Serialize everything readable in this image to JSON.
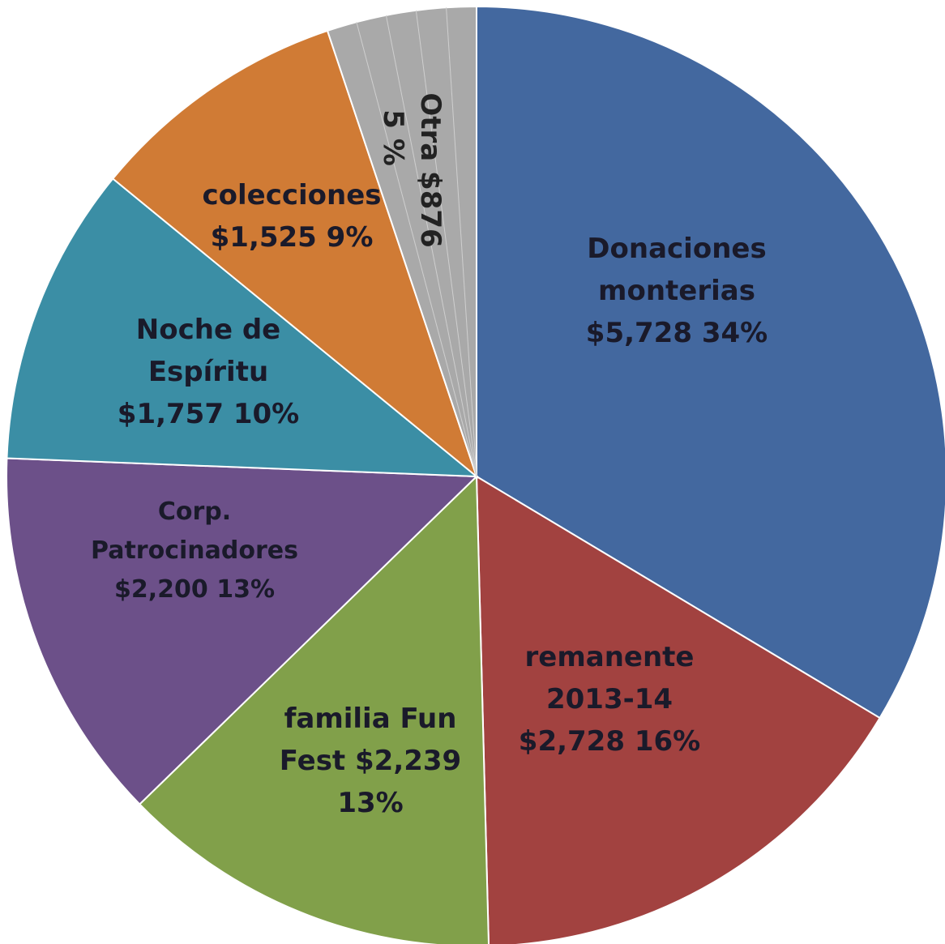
{
  "chart_data": {
    "type": "pie",
    "title": "",
    "slices": [
      {
        "name": "Donaciones monterias",
        "value": 5728,
        "percent_label": "34%",
        "color": "#43689f",
        "label_lines": [
          "Donaciones",
          "monterias",
          "$5,728  34%"
        ]
      },
      {
        "name": "remanente 2013-14",
        "value": 2728,
        "percent_label": "16%",
        "color": "#a24240",
        "label_lines": [
          "remanente",
          "2013-14",
          "$2,728  16%"
        ]
      },
      {
        "name": "familia Fun Fest",
        "value": 2239,
        "percent_label": "13%",
        "color": "#81a04a",
        "label_lines": [
          "familia Fun",
          "Fest  $2,239",
          "13%"
        ]
      },
      {
        "name": "Corp. Patrocinadores",
        "value": 2200,
        "percent_label": "13%",
        "color": "#6c5089",
        "label_lines": [
          "Corp.",
          "Patrocinadores",
          "$2,200  13%"
        ]
      },
      {
        "name": "Noche de Espíritu",
        "value": 1757,
        "percent_label": "10%",
        "color": "#3b8ea5",
        "label_lines": [
          "Noche de",
          "Espíritu",
          "$1,757  10%"
        ]
      },
      {
        "name": "colecciones",
        "value": 1525,
        "percent_label": "9%",
        "color": "#d07b35",
        "label_lines": [
          "colecciones",
          "$1,525  9%"
        ]
      },
      {
        "name": "Otra",
        "value": 876,
        "percent_label": "5 %",
        "color": "#a9a9a9",
        "label_lines": [
          "Otra $876",
          "5 %"
        ]
      }
    ],
    "legend": "none"
  }
}
